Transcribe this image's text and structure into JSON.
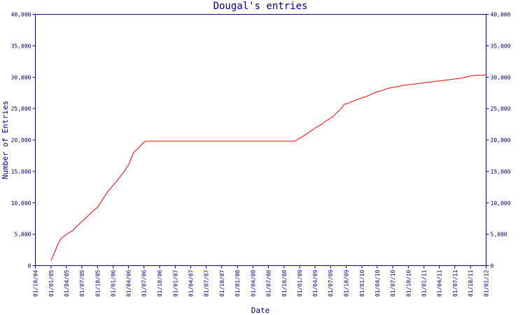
{
  "chart_data": {
    "type": "line",
    "title": "Dougal's entries",
    "xlabel": "Date",
    "ylabel": "Number of Entries",
    "line_color": "#ff0000",
    "axis_color": "#000080",
    "grid": false,
    "legend": "none",
    "xlim": [
      "2004-10-01",
      "2012-01-01"
    ],
    "ylim": [
      0,
      40000
    ],
    "y_ticks": [
      0,
      5000,
      10000,
      15000,
      20000,
      25000,
      30000,
      35000,
      40000
    ],
    "y_tick_labels": [
      "0",
      "5,000",
      "10,000",
      "15,000",
      "20,000",
      "25,000",
      "30,000",
      "35,000",
      "40,000"
    ],
    "x_ticks": [
      "2004-10-01",
      "2005-01-01",
      "2005-04-01",
      "2005-07-01",
      "2005-10-01",
      "2006-01-01",
      "2006-04-01",
      "2006-07-01",
      "2006-10-01",
      "2007-01-01",
      "2007-04-01",
      "2007-07-01",
      "2007-10-01",
      "2008-01-01",
      "2008-04-01",
      "2008-07-01",
      "2008-10-01",
      "2009-01-01",
      "2009-04-01",
      "2009-07-01",
      "2009-10-01",
      "2010-01-01",
      "2010-04-01",
      "2010-07-01",
      "2010-10-01",
      "2011-01-01",
      "2011-04-01",
      "2011-07-01",
      "2011-10-01",
      "2012-01-01"
    ],
    "x_tick_labels": [
      "01/10/04",
      "01/01/05",
      "01/04/05",
      "01/07/05",
      "01/10/05",
      "01/01/06",
      "01/04/06",
      "01/07/06",
      "01/10/06",
      "01/01/07",
      "01/04/07",
      "01/07/07",
      "01/10/07",
      "01/01/08",
      "01/04/08",
      "01/07/08",
      "01/10/08",
      "01/01/09",
      "01/04/09",
      "01/07/09",
      "01/10/09",
      "01/01/10",
      "01/04/10",
      "01/07/10",
      "01/10/10",
      "01/01/11",
      "01/04/11",
      "01/07/11",
      "01/10/11",
      "01/01/12"
    ],
    "series": [
      {
        "x": [
          "2005-01-01",
          "2005-01-20",
          "2005-02-10",
          "2005-03-01",
          "2005-04-01",
          "2005-05-10",
          "2005-06-01",
          "2005-07-01",
          "2005-08-01",
          "2005-09-01",
          "2005-10-01",
          "2005-11-01",
          "2005-12-01",
          "2006-01-01",
          "2006-02-01",
          "2006-03-01",
          "2006-04-01",
          "2006-05-01",
          "2006-06-01",
          "2006-06-20",
          "2006-07-10",
          "2006-08-01",
          "2006-08-15",
          "2006-09-01",
          "2008-11-01",
          "2008-12-01",
          "2009-01-01",
          "2009-02-01",
          "2009-03-01",
          "2009-04-01",
          "2009-04-20",
          "2009-05-10",
          "2009-06-01",
          "2009-06-20",
          "2009-07-10",
          "2009-08-01",
          "2009-09-01",
          "2009-09-20",
          "2009-10-10",
          "2009-11-01",
          "2009-12-01",
          "2010-01-01",
          "2010-02-01",
          "2010-03-01",
          "2010-04-01",
          "2010-04-20",
          "2010-05-10",
          "2010-06-01",
          "2010-07-01",
          "2010-08-01",
          "2010-09-01",
          "2010-10-01",
          "2010-11-01",
          "2010-12-01",
          "2011-01-01",
          "2011-02-01",
          "2011-03-01",
          "2011-04-01",
          "2011-05-01",
          "2011-06-01",
          "2011-07-01",
          "2011-08-01",
          "2011-09-01",
          "2011-10-01",
          "2011-11-01",
          "2011-12-01",
          "2012-01-01"
        ],
        "values": [
          800,
          2000,
          3400,
          4300,
          5000,
          5600,
          6300,
          7000,
          7800,
          8600,
          9300,
          10600,
          11800,
          12800,
          13800,
          14800,
          16000,
          18000,
          18800,
          19400,
          19800,
          19800,
          19800,
          19800,
          19800,
          19800,
          20300,
          20800,
          21300,
          21900,
          22200,
          22500,
          23000,
          23300,
          23600,
          24200,
          25000,
          25700,
          25800,
          26100,
          26400,
          26700,
          27000,
          27300,
          27700,
          27800,
          28000,
          28200,
          28400,
          28500,
          28700,
          28800,
          28900,
          29000,
          29100,
          29200,
          29300,
          29400,
          29500,
          29600,
          29700,
          29800,
          30000,
          30200,
          30300,
          30300,
          30400
        ]
      }
    ]
  }
}
